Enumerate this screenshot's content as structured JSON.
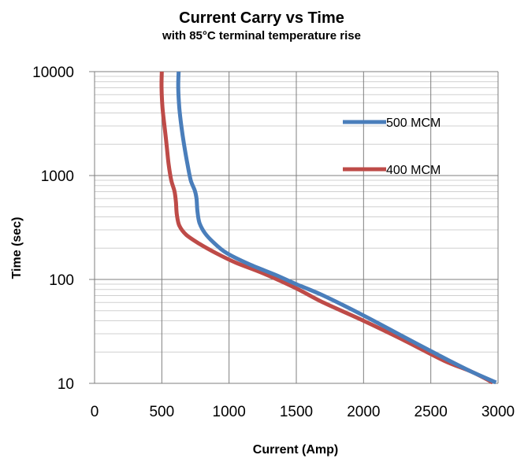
{
  "chart_data": {
    "type": "line",
    "title": "Current Carry vs Time",
    "subtitle": "with 85°C terminal temperature rise",
    "xlabel": "Current (Amp)",
    "ylabel": "Time (sec)",
    "xlim": [
      0,
      3000
    ],
    "ylim": [
      10,
      10000
    ],
    "yscale": "log",
    "x_ticks": [
      "0",
      "500",
      "1000",
      "1500",
      "2000",
      "2500",
      "3000"
    ],
    "y_ticks": [
      "10",
      "100",
      "1000",
      "10000"
    ],
    "grid": true,
    "legend_position": "right",
    "series": [
      {
        "name": "500 MCM",
        "color": "#4a7ebb",
        "points": [
          [
            625,
            10000
          ],
          [
            622,
            7000
          ],
          [
            630,
            4500
          ],
          [
            645,
            3000
          ],
          [
            665,
            2000
          ],
          [
            690,
            1300
          ],
          [
            715,
            900
          ],
          [
            745,
            720
          ],
          [
            758,
            600
          ],
          [
            765,
            450
          ],
          [
            780,
            350
          ],
          [
            820,
            280
          ],
          [
            880,
            230
          ],
          [
            980,
            180
          ],
          [
            1150,
            140
          ],
          [
            1350,
            110
          ],
          [
            1500,
            90
          ],
          [
            1700,
            70
          ],
          [
            2000,
            45
          ],
          [
            2300,
            28
          ],
          [
            2600,
            17.5
          ],
          [
            2800,
            13
          ],
          [
            2985,
            10.2
          ]
        ]
      },
      {
        "name": "400 MCM",
        "color": "#be4b48",
        "points": [
          [
            500,
            10000
          ],
          [
            498,
            7000
          ],
          [
            505,
            4500
          ],
          [
            520,
            3000
          ],
          [
            535,
            2000
          ],
          [
            550,
            1300
          ],
          [
            570,
            900
          ],
          [
            595,
            700
          ],
          [
            605,
            550
          ],
          [
            612,
            420
          ],
          [
            630,
            330
          ],
          [
            680,
            270
          ],
          [
            780,
            220
          ],
          [
            900,
            180
          ],
          [
            1050,
            145
          ],
          [
            1250,
            115
          ],
          [
            1500,
            82
          ],
          [
            1700,
            60
          ],
          [
            2000,
            40
          ],
          [
            2300,
            26
          ],
          [
            2600,
            16.5
          ],
          [
            2800,
            13
          ],
          [
            2960,
            10.2
          ]
        ]
      }
    ]
  }
}
